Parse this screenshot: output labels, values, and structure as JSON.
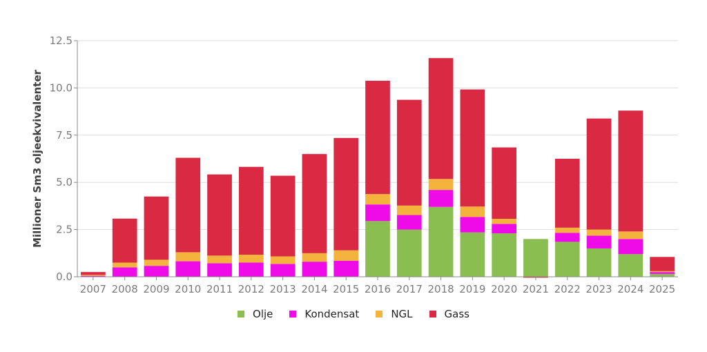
{
  "chart_data": {
    "type": "bar",
    "stacked": true,
    "ylabel": "Millioner Sm3 oljeekvivalenter",
    "xlabel": "",
    "ylim": [
      0,
      12.5
    ],
    "yticks": [
      "0.0",
      "2.5",
      "5.0",
      "7.5",
      "10.0",
      "12.5"
    ],
    "grid": true,
    "legend_position": "bottom",
    "categories": [
      "2007",
      "2008",
      "2009",
      "2010",
      "2011",
      "2012",
      "2013",
      "2014",
      "2015",
      "2016",
      "2017",
      "2018",
      "2019",
      "2020",
      "2021",
      "2022",
      "2023",
      "2024",
      "2025"
    ],
    "series": [
      {
        "name": "Olje",
        "color": "#8bbe50",
        "values": [
          0,
          0,
          0,
          0,
          0,
          0,
          0,
          0,
          0,
          2.95,
          2.5,
          3.7,
          2.35,
          2.3,
          2.0,
          1.85,
          1.5,
          1.2,
          0.15
        ]
      },
      {
        "name": "Kondensat",
        "color": "#ee0be8",
        "values": [
          0.05,
          0.5,
          0.58,
          0.82,
          0.72,
          0.75,
          0.68,
          0.8,
          0.85,
          0.88,
          0.77,
          0.9,
          0.82,
          0.5,
          0,
          0.48,
          0.68,
          0.8,
          0.1
        ]
      },
      {
        "name": "NGL",
        "color": "#f3b33d",
        "values": [
          0.05,
          0.25,
          0.32,
          0.48,
          0.4,
          0.42,
          0.4,
          0.45,
          0.55,
          0.55,
          0.5,
          0.58,
          0.55,
          0.27,
          0,
          0.27,
          0.32,
          0.4,
          0.05
        ]
      },
      {
        "name": "Gass",
        "color": "#d92943",
        "values": [
          0.15,
          2.33,
          3.35,
          5.0,
          4.3,
          4.65,
          4.27,
          5.25,
          5.95,
          6.0,
          5.6,
          6.4,
          6.2,
          3.78,
          -0.05,
          3.65,
          5.88,
          6.4,
          0.75
        ]
      }
    ]
  }
}
